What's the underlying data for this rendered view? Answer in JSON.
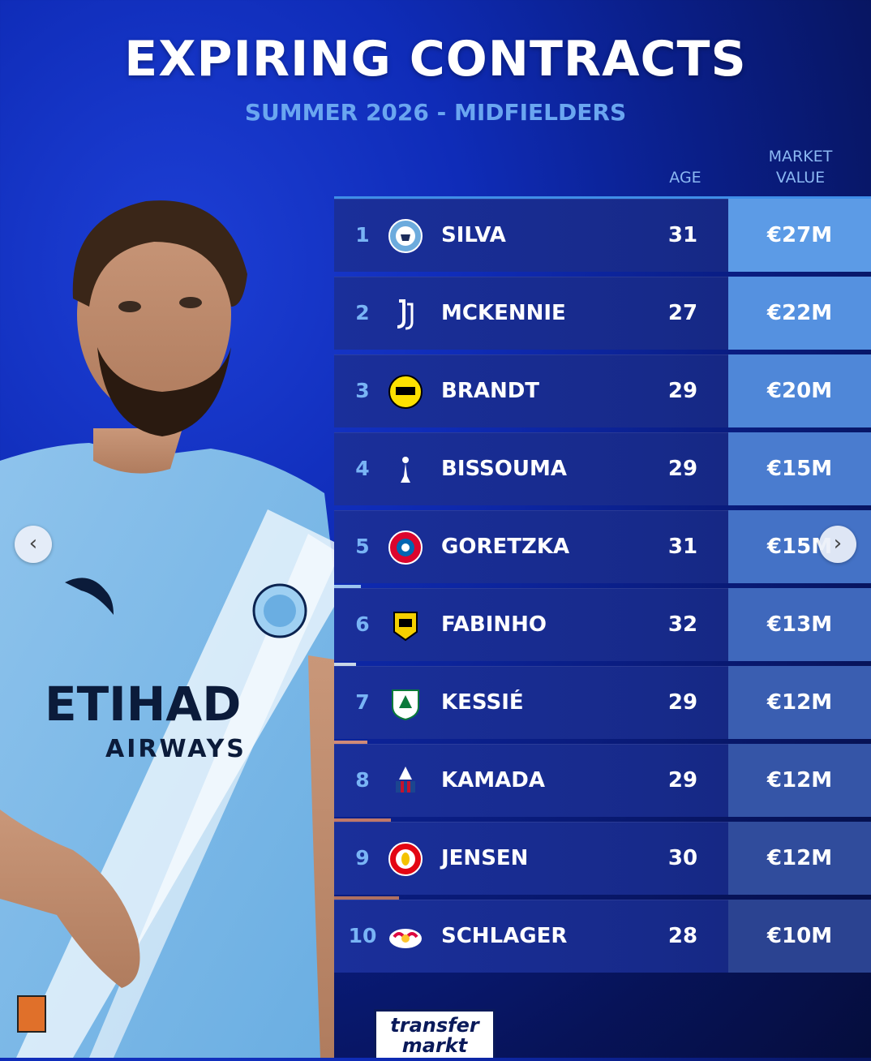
{
  "header": {
    "title": "EXPIRING CONTRACTS",
    "subtitle": "SUMMER 2026 - MIDFIELDERS"
  },
  "columns": {
    "age": "AGE",
    "market_value_line1": "MARKET",
    "market_value_line2": "VALUE"
  },
  "rows": [
    {
      "rank": "1",
      "club_icon": "man-city-crest-icon",
      "name": "SILVA",
      "age": "31",
      "value": "€27M",
      "value_color": "#5c9be6"
    },
    {
      "rank": "2",
      "club_icon": "juventus-crest-icon",
      "name": "MCKENNIE",
      "age": "27",
      "value": "€22M",
      "value_color": "#5591e0"
    },
    {
      "rank": "3",
      "club_icon": "dortmund-crest-icon",
      "name": "BRANDT",
      "age": "29",
      "value": "€20M",
      "value_color": "#4f87d8"
    },
    {
      "rank": "4",
      "club_icon": "tottenham-crest-icon",
      "name": "BISSOUMA",
      "age": "29",
      "value": "€15M",
      "value_color": "#4a7ccf"
    },
    {
      "rank": "5",
      "club_icon": "bayern-crest-icon",
      "name": "GORETZKA",
      "age": "31",
      "value": "€15M",
      "value_color": "#4472c6"
    },
    {
      "rank": "6",
      "club_icon": "al-ittihad-crest-icon",
      "name": "FABINHO",
      "age": "32",
      "value": "€13M",
      "value_color": "#3f68bc"
    },
    {
      "rank": "7",
      "club_icon": "al-ahli-crest-icon",
      "name": "KESSIÉ",
      "age": "29",
      "value": "€12M",
      "value_color": "#3a5eb1"
    },
    {
      "rank": "8",
      "club_icon": "crystal-palace-crest-icon",
      "name": "KAMADA",
      "age": "29",
      "value": "€12M",
      "value_color": "#3555a7"
    },
    {
      "rank": "9",
      "club_icon": "brentford-crest-icon",
      "name": "JENSEN",
      "age": "30",
      "value": "€12M",
      "value_color": "#304c9c"
    },
    {
      "rank": "10",
      "club_icon": "leipzig-crest-icon",
      "name": "SCHLAGER",
      "age": "28",
      "value": "€10M",
      "value_color": "#2b4391"
    }
  ],
  "carousel": {
    "prev_icon": "chevron-left-icon",
    "next_icon": "chevron-right-icon",
    "prev_glyph": "‹",
    "next_glyph": "›"
  },
  "player_image": {
    "shirt_sponsor": "ETIHAD",
    "shirt_sponsor_sub": "AIRWAYS"
  },
  "branding": {
    "logo_line1": "transfer",
    "logo_line2": "markt"
  }
}
